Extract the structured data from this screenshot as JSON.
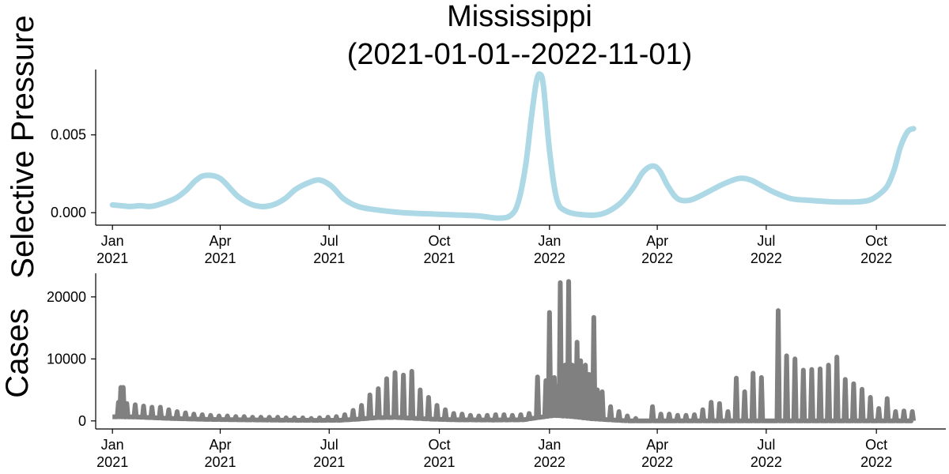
{
  "chart_data": [
    {
      "type": "line",
      "title": [
        "Mississippi",
        "(2021-01-01--2022-11-01)"
      ],
      "ylabel": "Selective Pressure",
      "xlabel": "",
      "xlim": [
        "2020-12-18",
        "2022-11-28"
      ],
      "ylim": [
        -0.0008,
        0.0092
      ],
      "yticks": [
        0,
        0.005
      ],
      "ytick_labels": [
        "0.000",
        "0.005"
      ],
      "xticks": [
        "2021-01-01",
        "2021-04-01",
        "2021-07-01",
        "2021-10-01",
        "2022-01-01",
        "2022-04-01",
        "2022-07-01",
        "2022-10-01"
      ],
      "xtick_labels": [
        [
          "Jan",
          "2021"
        ],
        [
          "Apr",
          "2021"
        ],
        [
          "Jul",
          "2021"
        ],
        [
          "Oct",
          "2021"
        ],
        [
          "Jan",
          "2022"
        ],
        [
          "Apr",
          "2022"
        ],
        [
          "Jul",
          "2022"
        ],
        [
          "Oct",
          "2022"
        ]
      ],
      "grid": false,
      "series": [
        {
          "color": "#add8e6",
          "x": [
            "2021-01-01",
            "2021-01-08",
            "2021-01-16",
            "2021-01-24",
            "2021-02-01",
            "2021-02-08",
            "2021-02-22",
            "2021-03-03",
            "2021-03-12",
            "2021-03-20",
            "2021-04-01",
            "2021-04-15",
            "2021-04-25",
            "2021-05-05",
            "2021-05-15",
            "2021-05-25",
            "2021-06-03",
            "2021-06-13",
            "2021-06-23",
            "2021-07-03",
            "2021-07-13",
            "2021-07-25",
            "2021-08-08",
            "2021-09-01",
            "2021-10-01",
            "2021-11-01",
            "2021-11-20",
            "2021-11-30",
            "2021-12-06",
            "2021-12-12",
            "2021-12-17",
            "2021-12-21",
            "2021-12-24",
            "2021-12-27",
            "2022-01-01",
            "2022-01-07",
            "2022-01-15",
            "2022-02-01",
            "2022-02-15",
            "2022-03-01",
            "2022-03-12",
            "2022-03-20",
            "2022-03-28",
            "2022-04-03",
            "2022-04-10",
            "2022-04-18",
            "2022-04-28",
            "2022-05-10",
            "2022-05-25",
            "2022-06-08",
            "2022-06-18",
            "2022-06-28",
            "2022-07-08",
            "2022-07-22",
            "2022-08-05",
            "2022-08-25",
            "2022-09-15",
            "2022-09-25",
            "2022-10-02",
            "2022-10-10",
            "2022-10-16",
            "2022-10-21",
            "2022-10-27",
            "2022-11-01"
          ],
          "values": [
            0.0005,
            0.00045,
            0.0004,
            0.00045,
            0.0004,
            0.0005,
            0.0009,
            0.0014,
            0.0021,
            0.0024,
            0.0022,
            0.0011,
            0.0006,
            0.0004,
            0.0005,
            0.0009,
            0.0015,
            0.0019,
            0.0021,
            0.0017,
            0.0009,
            0.0004,
            0.0002,
            0.0,
            -0.0001,
            -0.0002,
            -0.00035,
            -0.00015,
            0.0007,
            0.003,
            0.0062,
            0.0084,
            0.0089,
            0.0081,
            0.004,
            0.0009,
            0.0001,
            -0.00015,
            -5e-05,
            0.0006,
            0.0016,
            0.0026,
            0.003,
            0.0027,
            0.0017,
            0.0009,
            0.0008,
            0.0012,
            0.0018,
            0.0022,
            0.0021,
            0.0017,
            0.0013,
            0.0009,
            0.0008,
            0.0007,
            0.0007,
            0.0008,
            0.0011,
            0.0017,
            0.0028,
            0.0042,
            0.0052,
            0.0054
          ]
        }
      ]
    },
    {
      "type": "line",
      "title": "",
      "ylabel": "Cases",
      "xlabel": "",
      "xlim": [
        "2020-12-18",
        "2022-11-28"
      ],
      "ylim": [
        -1300,
        23800
      ],
      "yticks": [
        0,
        10000,
        20000
      ],
      "ytick_labels": [
        "0",
        "10000",
        "20000"
      ],
      "xticks": [
        "2021-01-01",
        "2021-04-01",
        "2021-07-01",
        "2021-10-01",
        "2022-01-01",
        "2022-04-01",
        "2022-07-01",
        "2022-10-01"
      ],
      "xtick_labels": [
        [
          "Jan",
          "2021"
        ],
        [
          "Apr",
          "2021"
        ],
        [
          "Jul",
          "2021"
        ],
        [
          "Oct",
          "2021"
        ],
        [
          "Jan",
          "2022"
        ],
        [
          "Apr",
          "2022"
        ],
        [
          "Jul",
          "2022"
        ],
        [
          "Oct",
          "2022"
        ]
      ],
      "grid": false,
      "series": [
        {
          "color": "#808080",
          "baseline": [
            [
              "2021-01-01",
              1900
            ],
            [
              "2021-01-20",
              1800
            ],
            [
              "2021-02-20",
              1100
            ],
            [
              "2021-03-20",
              700
            ],
            [
              "2021-04-20",
              500
            ],
            [
              "2021-05-20",
              350
            ],
            [
              "2021-06-20",
              250
            ],
            [
              "2021-07-10",
              300
            ],
            [
              "2021-07-25",
              800
            ],
            [
              "2021-08-10",
              1500
            ],
            [
              "2021-08-25",
              1600
            ],
            [
              "2021-09-10",
              1200
            ],
            [
              "2021-09-25",
              800
            ],
            [
              "2021-10-15",
              500
            ],
            [
              "2021-11-15",
              400
            ],
            [
              "2021-12-10",
              500
            ],
            [
              "2021-12-22",
              1500
            ],
            [
              "2022-01-05",
              2500
            ],
            [
              "2022-01-20",
              2000
            ],
            [
              "2022-02-05",
              1000
            ],
            [
              "2022-02-20",
              500
            ],
            [
              "2022-03-05",
              100
            ],
            [
              "2022-03-10",
              0
            ],
            [
              "2022-11-01",
              0
            ]
          ],
          "spikes": [
            [
              "2021-01-06",
              3000
            ],
            [
              "2021-01-08",
              5400
            ],
            [
              "2021-01-10",
              5400
            ],
            [
              "2021-01-13",
              2800
            ],
            [
              "2021-01-20",
              2600
            ],
            [
              "2021-01-27",
              2400
            ],
            [
              "2021-02-03",
              2200
            ],
            [
              "2021-02-10",
              2200
            ],
            [
              "2021-02-17",
              1800
            ],
            [
              "2021-02-24",
              1500
            ],
            [
              "2021-03-03",
              1300
            ],
            [
              "2021-03-10",
              1100
            ],
            [
              "2021-03-17",
              1000
            ],
            [
              "2021-03-24",
              900
            ],
            [
              "2021-03-31",
              800
            ],
            [
              "2021-04-07",
              800
            ],
            [
              "2021-04-14",
              700
            ],
            [
              "2021-04-21",
              700
            ],
            [
              "2021-04-28",
              600
            ],
            [
              "2021-05-05",
              600
            ],
            [
              "2021-05-12",
              600
            ],
            [
              "2021-05-19",
              600
            ],
            [
              "2021-05-26",
              500
            ],
            [
              "2021-06-02",
              500
            ],
            [
              "2021-06-09",
              500
            ],
            [
              "2021-06-16",
              400
            ],
            [
              "2021-06-23",
              500
            ],
            [
              "2021-06-30",
              600
            ],
            [
              "2021-07-07",
              700
            ],
            [
              "2021-07-14",
              1000
            ],
            [
              "2021-07-21",
              1700
            ],
            [
              "2021-07-28",
              2500
            ],
            [
              "2021-08-04",
              4200
            ],
            [
              "2021-08-11",
              5200
            ],
            [
              "2021-08-18",
              6800
            ],
            [
              "2021-08-25",
              7800
            ],
            [
              "2021-09-01",
              7400
            ],
            [
              "2021-09-08",
              8000
            ],
            [
              "2021-09-15",
              5000
            ],
            [
              "2021-09-22",
              3800
            ],
            [
              "2021-09-29",
              2500
            ],
            [
              "2021-10-06",
              1800
            ],
            [
              "2021-10-13",
              1200
            ],
            [
              "2021-10-20",
              1100
            ],
            [
              "2021-10-27",
              900
            ],
            [
              "2021-11-03",
              800
            ],
            [
              "2021-11-10",
              900
            ],
            [
              "2021-11-17",
              1000
            ],
            [
              "2021-11-24",
              1000
            ],
            [
              "2021-12-01",
              900
            ],
            [
              "2021-12-08",
              1000
            ],
            [
              "2021-12-15",
              1200
            ],
            [
              "2021-12-22",
              7100
            ],
            [
              "2021-12-29",
              6500
            ],
            [
              "2022-01-01",
              17500
            ],
            [
              "2022-01-05",
              7000
            ],
            [
              "2022-01-08",
              5500
            ],
            [
              "2022-01-10",
              22300
            ],
            [
              "2022-01-14",
              9000
            ],
            [
              "2022-01-17",
              22500
            ],
            [
              "2022-01-20",
              9000
            ],
            [
              "2022-01-24",
              12700
            ],
            [
              "2022-01-27",
              9700
            ],
            [
              "2022-01-31",
              9000
            ],
            [
              "2022-02-03",
              7500
            ],
            [
              "2022-02-07",
              16700
            ],
            [
              "2022-02-10",
              5000
            ],
            [
              "2022-02-14",
              4700
            ],
            [
              "2022-02-21",
              2300
            ],
            [
              "2022-02-28",
              1500
            ],
            [
              "2022-03-07",
              800
            ],
            [
              "2022-03-14",
              400
            ],
            [
              "2022-03-28",
              2300
            ],
            [
              "2022-04-04",
              1100
            ],
            [
              "2022-04-11",
              1100
            ],
            [
              "2022-04-18",
              900
            ],
            [
              "2022-04-25",
              900
            ],
            [
              "2022-05-02",
              1000
            ],
            [
              "2022-05-09",
              1800
            ],
            [
              "2022-05-16",
              3000
            ],
            [
              "2022-05-23",
              2800
            ],
            [
              "2022-05-30",
              1500
            ],
            [
              "2022-06-06",
              6900
            ],
            [
              "2022-06-13",
              4700
            ],
            [
              "2022-06-20",
              7700
            ],
            [
              "2022-06-27",
              7000
            ],
            [
              "2022-07-11",
              17800
            ],
            [
              "2022-07-18",
              10500
            ],
            [
              "2022-07-25",
              10000
            ],
            [
              "2022-08-01",
              8200
            ],
            [
              "2022-08-08",
              8300
            ],
            [
              "2022-08-15",
              8400
            ],
            [
              "2022-08-22",
              9000
            ],
            [
              "2022-08-29",
              10300
            ],
            [
              "2022-09-05",
              6700
            ],
            [
              "2022-09-12",
              6000
            ],
            [
              "2022-09-19",
              5100
            ],
            [
              "2022-09-26",
              3800
            ],
            [
              "2022-10-03",
              2000
            ],
            [
              "2022-10-10",
              3600
            ],
            [
              "2022-10-17",
              1500
            ],
            [
              "2022-10-24",
              1600
            ],
            [
              "2022-10-31",
              1500
            ]
          ]
        }
      ]
    }
  ]
}
